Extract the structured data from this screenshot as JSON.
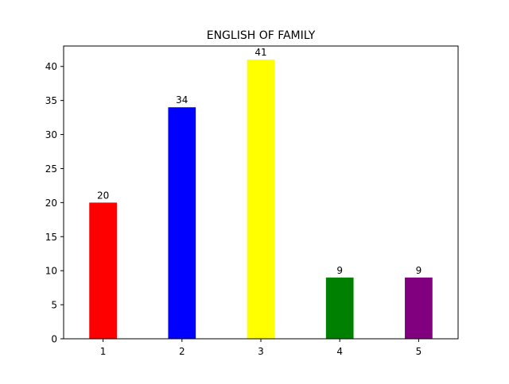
{
  "chart_data": {
    "type": "bar",
    "title": "ENGLISH OF FAMILY",
    "xlabel": "",
    "ylabel": "",
    "categories": [
      "1",
      "2",
      "3",
      "4",
      "5"
    ],
    "values": [
      20,
      34,
      41,
      9,
      9
    ],
    "data_labels": [
      "20",
      "34",
      "41",
      "9",
      "9"
    ],
    "colors": [
      "#ff0000",
      "#0000ff",
      "#ffff00",
      "#008000",
      "#800080"
    ],
    "ylim": [
      0,
      43
    ],
    "yticks": [
      0,
      5,
      10,
      15,
      20,
      25,
      30,
      35,
      40
    ],
    "grid": false,
    "legend": "none"
  }
}
